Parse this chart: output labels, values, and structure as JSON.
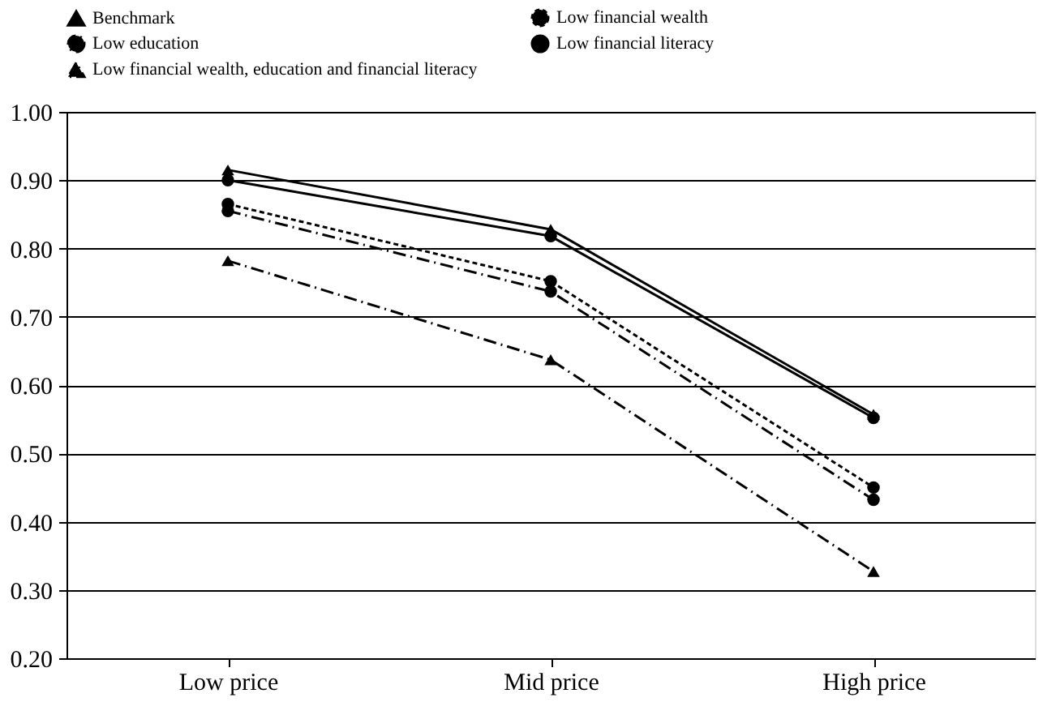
{
  "chart_data": {
    "type": "line",
    "categories": [
      "Low price",
      "Mid price",
      "High price"
    ],
    "series": [
      {
        "name": "Benchmark",
        "color": "#000000",
        "values": [
          0.915,
          0.828,
          0.557
        ],
        "marker": "triangle",
        "line_style": "solid"
      },
      {
        "name": "Low financial wealth",
        "color": "#000000",
        "values": [
          0.865,
          0.752,
          0.45
        ],
        "marker": "circle",
        "line_style": "dotted"
      },
      {
        "name": "Low education",
        "color": "#000000",
        "values": [
          0.855,
          0.737,
          0.432
        ],
        "marker": "circle",
        "line_style": "dashed"
      },
      {
        "name": "Low financial literacy",
        "color": "#000000",
        "values": [
          0.9,
          0.818,
          0.552
        ],
        "marker": "circle",
        "line_style": "solid"
      },
      {
        "name": "Low financial wealth, education and financial literacy",
        "color": "#000000",
        "values": [
          0.782,
          0.637,
          0.327
        ],
        "marker": "triangle",
        "line_style": "dashed"
      }
    ],
    "ylim": [
      0.2,
      1.0
    ],
    "yticks": [
      {
        "value": 0.2,
        "label": "0.20"
      },
      {
        "value": 0.3,
        "label": "0.30"
      },
      {
        "value": 0.4,
        "label": "0.40"
      },
      {
        "value": 0.5,
        "label": "0.50"
      },
      {
        "value": 0.6,
        "label": "0.60"
      },
      {
        "value": 0.7,
        "label": "0.70"
      },
      {
        "value": 0.8,
        "label": "0.80"
      },
      {
        "value": 0.9,
        "label": "0.90"
      },
      {
        "value": 1.0,
        "label": "1.00"
      }
    ],
    "grid": "y",
    "legend": "top"
  }
}
